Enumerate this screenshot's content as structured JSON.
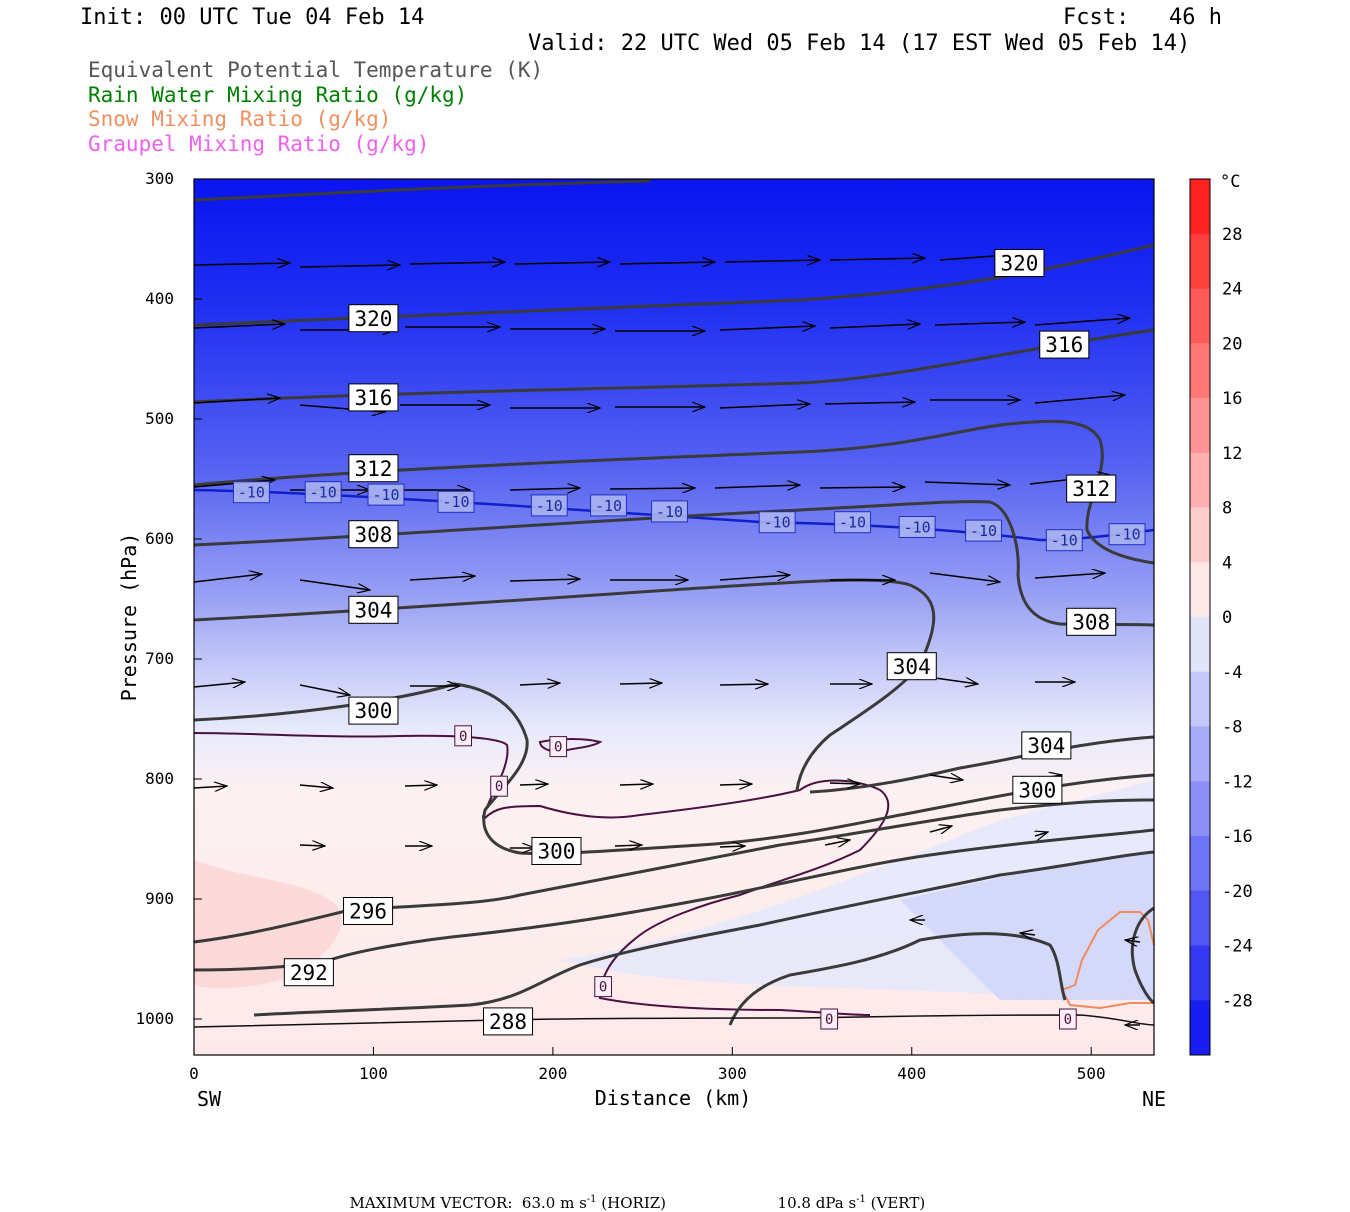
{
  "header": {
    "init": "Init: 00 UTC Tue 04 Feb 14",
    "fcst": "Fcst:   46 h",
    "valid": "Valid: 22 UTC Wed 05 Feb 14 (17 EST Wed 05 Feb 14)"
  },
  "legend": [
    {
      "text": "Equivalent Potential Temperature (K)",
      "color": "#555555"
    },
    {
      "text": "Rain Water Mixing Ratio (g/kg)",
      "color": "#008000"
    },
    {
      "text": "Snow Mixing Ratio (g/kg)",
      "color": "#f09060"
    },
    {
      "text": "Graupel Mixing Ratio (g/kg)",
      "color": "#f060f0"
    }
  ],
  "chart_data": {
    "type": "heatmap",
    "title": "",
    "xlabel": "Distance (km)",
    "ylabel": "Pressure (hPa)",
    "xlim": [
      0,
      535
    ],
    "ylim": [
      1030,
      300
    ],
    "x_ticks": [
      0,
      100,
      200,
      300,
      400,
      500
    ],
    "y_ticks": [
      300,
      400,
      500,
      600,
      700,
      800,
      900,
      1000
    ],
    "x_end_labels": {
      "left": "SW",
      "right": "NE"
    },
    "colorbar": {
      "unit": "°C",
      "ticks": [
        28,
        24,
        20,
        16,
        12,
        8,
        4,
        0,
        -4,
        -8,
        -12,
        -16,
        -20,
        -24,
        -28
      ],
      "min": -32,
      "max": 32
    },
    "contour_labels": {
      "theta_e": [
        {
          "x": 460,
          "p": 370,
          "v": "320"
        },
        {
          "x": 100,
          "p": 416,
          "v": "320"
        },
        {
          "x": 485,
          "p": 438,
          "v": "316"
        },
        {
          "x": 100,
          "p": 482,
          "v": "316"
        },
        {
          "x": 100,
          "p": 541,
          "v": "312"
        },
        {
          "x": 500,
          "p": 558,
          "v": "312"
        },
        {
          "x": 100,
          "p": 596,
          "v": "308"
        },
        {
          "x": 500,
          "p": 669,
          "v": "308"
        },
        {
          "x": 100,
          "p": 659,
          "v": "304"
        },
        {
          "x": 400,
          "p": 706,
          "v": "304"
        },
        {
          "x": 475,
          "p": 772,
          "v": "304"
        },
        {
          "x": 100,
          "p": 743,
          "v": "300"
        },
        {
          "x": 470,
          "p": 809,
          "v": "300"
        },
        {
          "x": 202,
          "p": 860,
          "v": "300"
        },
        {
          "x": 97,
          "p": 910,
          "v": "296"
        },
        {
          "x": 64,
          "p": 961,
          "v": "292"
        },
        {
          "x": 175,
          "p": 1002,
          "v": "288"
        }
      ],
      "isotherm": [
        {
          "x": 32,
          "p": 561,
          "v": "-10"
        },
        {
          "x": 72,
          "p": 561,
          "v": "-10"
        },
        {
          "x": 107,
          "p": 563,
          "v": "-10"
        },
        {
          "x": 146,
          "p": 569,
          "v": "-10"
        },
        {
          "x": 198,
          "p": 572,
          "v": "-10"
        },
        {
          "x": 231,
          "p": 572,
          "v": "-10"
        },
        {
          "x": 265,
          "p": 577,
          "v": "-10"
        },
        {
          "x": 325,
          "p": 586,
          "v": "-10"
        },
        {
          "x": 367,
          "p": 586,
          "v": "-10"
        },
        {
          "x": 403,
          "p": 590,
          "v": "-10"
        },
        {
          "x": 440,
          "p": 593,
          "v": "-10"
        },
        {
          "x": 485,
          "p": 601,
          "v": "-10"
        },
        {
          "x": 520,
          "p": 596,
          "v": "-10"
        }
      ],
      "zero_c": [
        {
          "x": 150,
          "p": 764,
          "v": "0"
        },
        {
          "x": 203,
          "p": 773,
          "v": "0"
        },
        {
          "x": 170,
          "p": 806,
          "v": "0"
        },
        {
          "x": 228,
          "p": 973,
          "v": "0"
        },
        {
          "x": 354,
          "p": 1000,
          "v": "0"
        },
        {
          "x": 487,
          "p": 1000,
          "v": "0"
        }
      ]
    }
  },
  "footer": {
    "max_vector": "MAXIMUM VECTOR:  63.0 m s",
    "sup": "-1",
    "horiz": " (HORIZ)",
    "vert": "10.8 dPa s",
    "vert_suffix": " (VERT)"
  }
}
